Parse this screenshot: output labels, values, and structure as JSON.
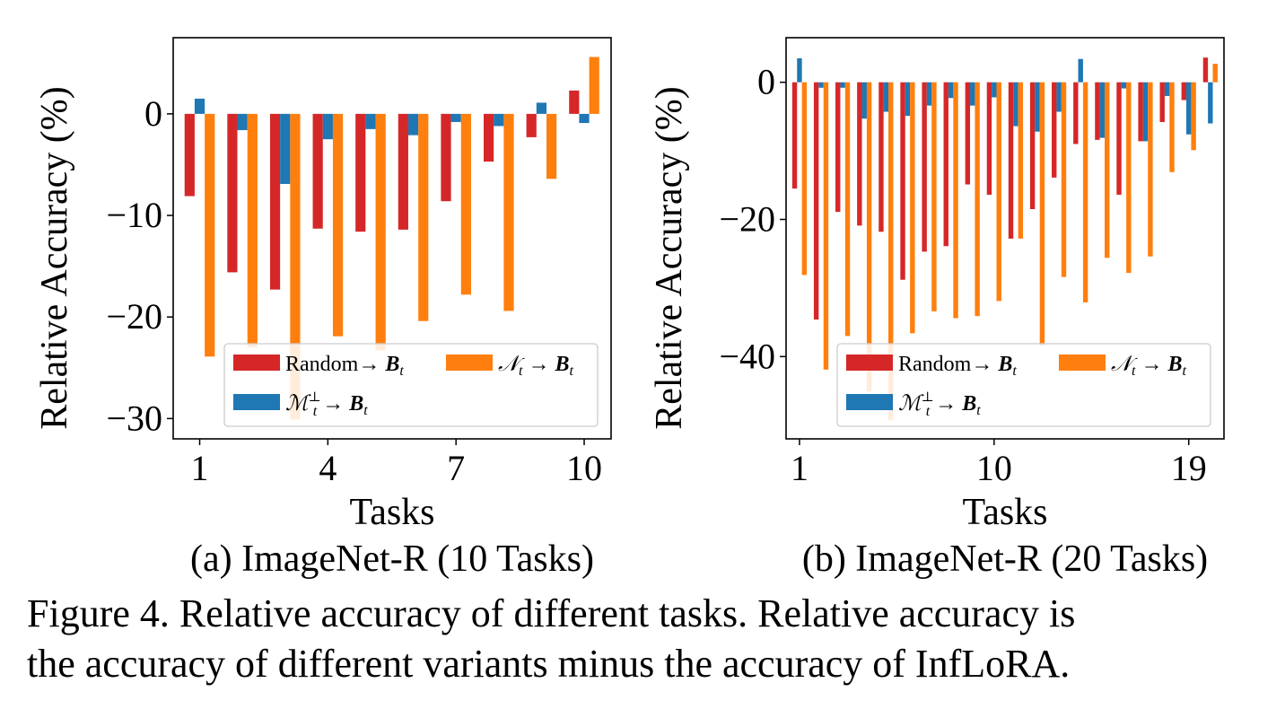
{
  "figure": {
    "caption_line1": "Figure 4. Relative accuracy of different tasks. Relative accuracy is",
    "caption_line2": "the accuracy of different variants minus the accuracy of InfLoRA."
  },
  "colors": {
    "random": "#d62728",
    "nullspace": "#ff7f0e",
    "orth": "#1f77b4"
  },
  "legend_labels": {
    "random": {
      "text": "Random→ ",
      "bold": "B",
      "sub": "t"
    },
    "nullspace": {
      "math": "𝒩",
      "sub": "t",
      "arrow": " → ",
      "bold": "B",
      "sub2": "t"
    },
    "orth": {
      "math": "ℳ",
      "sup": "⊥",
      "sub": "t",
      "arrow": " → ",
      "bold": "B",
      "sub2": "t"
    }
  },
  "chart_data": [
    {
      "type": "bar",
      "subcaption": "(a) ImageNet-R (10 Tasks)",
      "xlabel": "Tasks",
      "ylabel": "Relative Accuracy (%)",
      "ylim": [
        -32,
        7.5
      ],
      "yticks": [
        0,
        -10,
        -20,
        -30
      ],
      "ytick_labels": [
        "0",
        "−10",
        "−20",
        "−30"
      ],
      "categories": [
        1,
        2,
        3,
        4,
        5,
        6,
        7,
        8,
        9,
        10
      ],
      "xticks": [
        1,
        4,
        7,
        10
      ],
      "xtick_labels": [
        "1",
        "4",
        "7",
        "10"
      ],
      "legend_position": "lower-right",
      "series": [
        {
          "key": "random",
          "values": [
            -8.1,
            -15.6,
            -17.3,
            -11.3,
            -11.6,
            -11.4,
            -8.6,
            -4.7,
            -2.3,
            2.3
          ]
        },
        {
          "key": "orth",
          "values": [
            1.5,
            -1.6,
            -6.9,
            -2.5,
            -1.5,
            -2.1,
            -0.8,
            -1.2,
            1.1,
            -0.9
          ]
        },
        {
          "key": "nullspace",
          "values": [
            -23.9,
            -23.0,
            -30.1,
            -21.9,
            -23.3,
            -20.4,
            -17.8,
            -19.4,
            -6.4,
            5.6
          ]
        }
      ]
    },
    {
      "type": "bar",
      "subcaption": "(b) ImageNet-R (20 Tasks)",
      "xlabel": "Tasks",
      "ylabel": "Relative Accuracy (%)",
      "ylim": [
        -52,
        6.5
      ],
      "yticks": [
        0,
        -20,
        -40
      ],
      "ytick_labels": [
        "0",
        "−20",
        "−40"
      ],
      "categories": [
        1,
        2,
        3,
        4,
        5,
        6,
        7,
        8,
        9,
        10,
        11,
        12,
        13,
        14,
        15,
        16,
        17,
        18,
        19,
        20
      ],
      "xticks": [
        1,
        10,
        19
      ],
      "xtick_labels": [
        "1",
        "10",
        "19"
      ],
      "legend_position": "lower-right",
      "series": [
        {
          "key": "random",
          "values": [
            -15.5,
            -34.6,
            -18.9,
            -20.9,
            -21.8,
            -28.8,
            -24.7,
            -23.9,
            -14.9,
            -16.4,
            -22.8,
            -18.5,
            -13.9,
            -9.0,
            -8.4,
            -16.4,
            -8.6,
            -5.8,
            -2.6,
            3.6
          ]
        },
        {
          "key": "orth",
          "values": [
            3.5,
            -0.8,
            -0.8,
            -5.3,
            -4.3,
            -4.9,
            -3.4,
            -2.3,
            -3.4,
            -2.2,
            -6.4,
            -7.2,
            -4.3,
            3.4,
            -8.1,
            -0.9,
            -8.6,
            -2.0,
            -7.6,
            -6.0
          ]
        },
        {
          "key": "nullspace",
          "values": [
            -28.1,
            -41.9,
            -37.0,
            -45.1,
            -49.3,
            -36.6,
            -33.4,
            -34.4,
            -34.1,
            -31.9,
            -22.8,
            -38.4,
            -28.4,
            -32.1,
            -25.6,
            -27.8,
            -25.4,
            -13.1,
            -9.9,
            2.7
          ]
        }
      ]
    }
  ]
}
